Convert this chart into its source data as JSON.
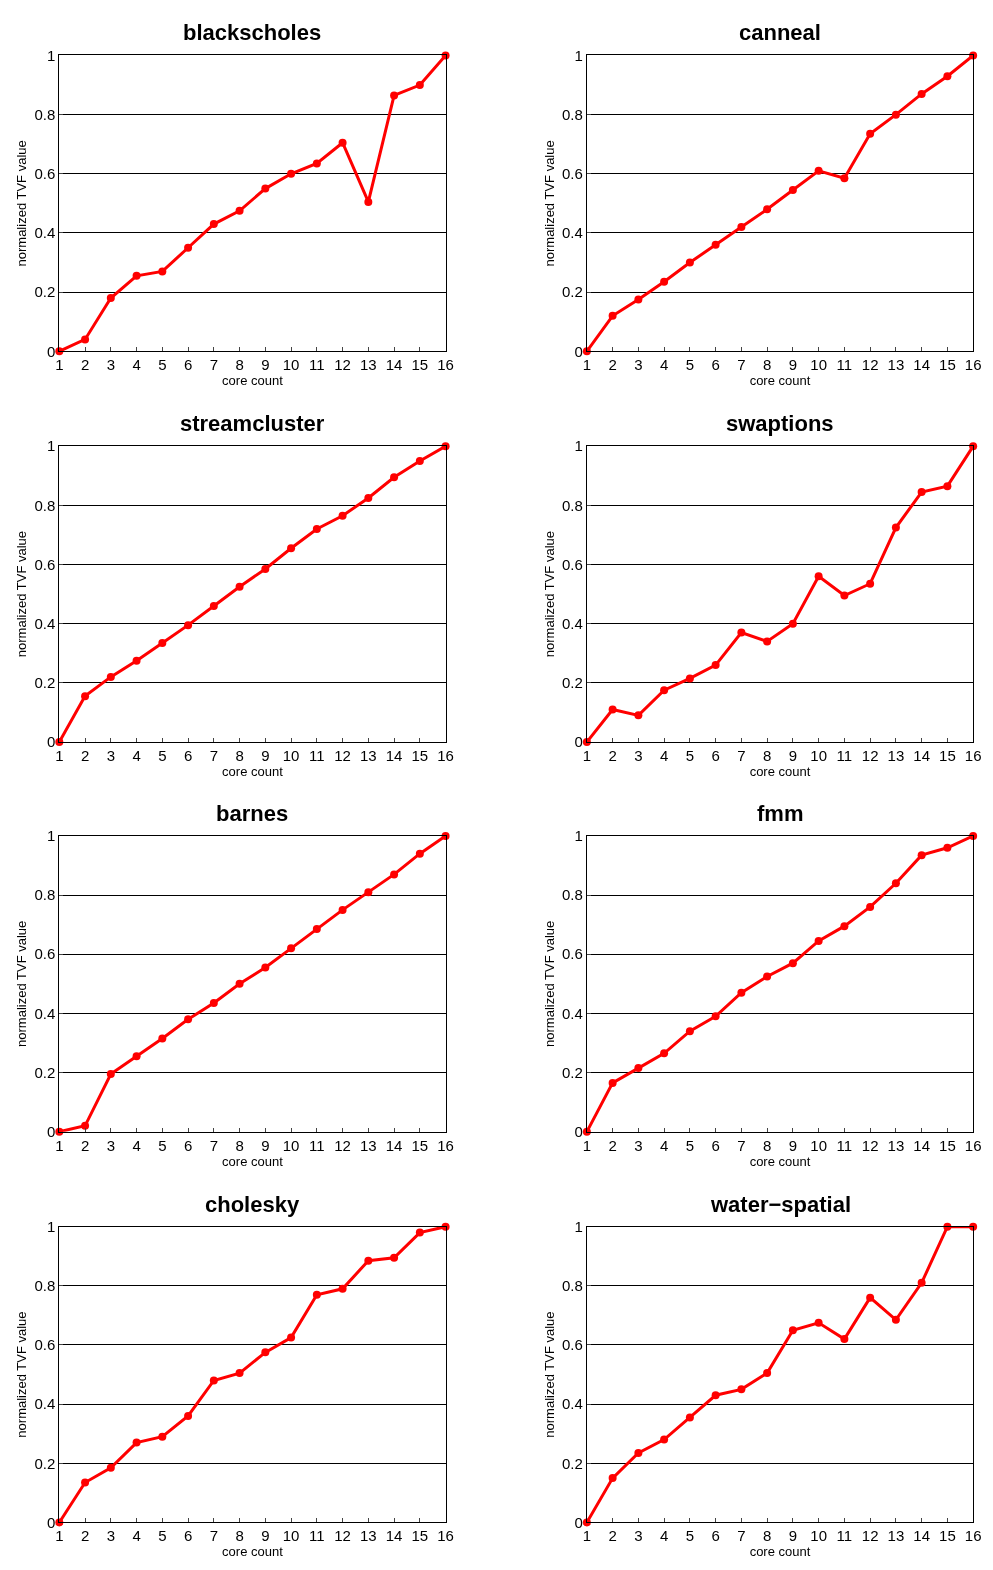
{
  "chart_data": [
    {
      "type": "line",
      "title": "blackscholes",
      "xlabel": "core count",
      "ylabel": "normalized TVF value",
      "x": [
        1,
        2,
        3,
        4,
        5,
        6,
        7,
        8,
        9,
        10,
        11,
        12,
        13,
        14,
        15,
        16
      ],
      "xlim": [
        1,
        16
      ],
      "ylim": [
        0,
        1
      ],
      "xticks": [
        1,
        2,
        3,
        4,
        5,
        6,
        7,
        8,
        9,
        10,
        11,
        12,
        13,
        14,
        15,
        16
      ],
      "yticks": [
        0,
        0.2,
        0.4,
        0.6,
        0.8,
        1
      ],
      "grid": "y",
      "marker": "circle",
      "line_style": "solid",
      "series": [
        {
          "color": "#ff0000",
          "values": [
            0,
            0.04,
            0.18,
            0.255,
            0.27,
            0.35,
            0.43,
            0.475,
            0.55,
            0.6,
            0.635,
            0.705,
            0.505,
            0.865,
            0.9,
            1
          ]
        }
      ]
    },
    {
      "type": "line",
      "title": "canneal",
      "xlabel": "core count",
      "ylabel": "normalized TVF value",
      "x": [
        1,
        2,
        3,
        4,
        5,
        6,
        7,
        8,
        9,
        10,
        11,
        12,
        13,
        14,
        15,
        16
      ],
      "xlim": [
        1,
        16
      ],
      "ylim": [
        0,
        1
      ],
      "xticks": [
        1,
        2,
        3,
        4,
        5,
        6,
        7,
        8,
        9,
        10,
        11,
        12,
        13,
        14,
        15,
        16
      ],
      "yticks": [
        0,
        0.2,
        0.4,
        0.6,
        0.8,
        1
      ],
      "grid": "y",
      "marker": "circle",
      "line_style": "solid",
      "series": [
        {
          "color": "#ff0000",
          "values": [
            0,
            0.12,
            0.175,
            0.235,
            0.3,
            0.36,
            0.42,
            0.48,
            0.545,
            0.61,
            0.585,
            0.735,
            0.8,
            0.87,
            0.93,
            1
          ]
        }
      ]
    },
    {
      "type": "line",
      "title": "streamcluster",
      "xlabel": "core count",
      "ylabel": "normalized TVF value",
      "x": [
        1,
        2,
        3,
        4,
        5,
        6,
        7,
        8,
        9,
        10,
        11,
        12,
        13,
        14,
        15,
        16
      ],
      "xlim": [
        1,
        16
      ],
      "ylim": [
        0,
        1
      ],
      "xticks": [
        1,
        2,
        3,
        4,
        5,
        6,
        7,
        8,
        9,
        10,
        11,
        12,
        13,
        14,
        15,
        16
      ],
      "yticks": [
        0,
        0.2,
        0.4,
        0.6,
        0.8,
        1
      ],
      "grid": "y",
      "marker": "circle",
      "line_style": "solid",
      "series": [
        {
          "color": "#ff0000",
          "values": [
            0,
            0.155,
            0.22,
            0.275,
            0.335,
            0.395,
            0.46,
            0.525,
            0.585,
            0.655,
            0.72,
            0.765,
            0.825,
            0.895,
            0.95,
            1
          ]
        }
      ]
    },
    {
      "type": "line",
      "title": "swaptions",
      "xlabel": "core count",
      "ylabel": "normalized TVF value",
      "x": [
        1,
        2,
        3,
        4,
        5,
        6,
        7,
        8,
        9,
        10,
        11,
        12,
        13,
        14,
        15,
        16
      ],
      "xlim": [
        1,
        16
      ],
      "ylim": [
        0,
        1
      ],
      "xticks": [
        1,
        2,
        3,
        4,
        5,
        6,
        7,
        8,
        9,
        10,
        11,
        12,
        13,
        14,
        15,
        16
      ],
      "yticks": [
        0,
        0.2,
        0.4,
        0.6,
        0.8,
        1
      ],
      "grid": "y",
      "marker": "circle",
      "line_style": "solid",
      "series": [
        {
          "color": "#ff0000",
          "values": [
            0,
            0.11,
            0.09,
            0.175,
            0.215,
            0.26,
            0.37,
            0.34,
            0.4,
            0.56,
            0.495,
            0.535,
            0.725,
            0.845,
            0.865,
            1
          ]
        }
      ]
    },
    {
      "type": "line",
      "title": "barnes",
      "xlabel": "core count",
      "ylabel": "normalized TVF value",
      "x": [
        1,
        2,
        3,
        4,
        5,
        6,
        7,
        8,
        9,
        10,
        11,
        12,
        13,
        14,
        15,
        16
      ],
      "xlim": [
        1,
        16
      ],
      "ylim": [
        0,
        1
      ],
      "xticks": [
        1,
        2,
        3,
        4,
        5,
        6,
        7,
        8,
        9,
        10,
        11,
        12,
        13,
        14,
        15,
        16
      ],
      "yticks": [
        0,
        0.2,
        0.4,
        0.6,
        0.8,
        1
      ],
      "grid": "y",
      "marker": "circle",
      "line_style": "solid",
      "series": [
        {
          "color": "#ff0000",
          "values": [
            0,
            0.02,
            0.195,
            0.255,
            0.315,
            0.38,
            0.435,
            0.5,
            0.555,
            0.62,
            0.685,
            0.75,
            0.81,
            0.87,
            0.94,
            1
          ]
        }
      ]
    },
    {
      "type": "line",
      "title": "fmm",
      "xlabel": "core count",
      "ylabel": "normalized TVF value",
      "x": [
        1,
        2,
        3,
        4,
        5,
        6,
        7,
        8,
        9,
        10,
        11,
        12,
        13,
        14,
        15,
        16
      ],
      "xlim": [
        1,
        16
      ],
      "ylim": [
        0,
        1
      ],
      "xticks": [
        1,
        2,
        3,
        4,
        5,
        6,
        7,
        8,
        9,
        10,
        11,
        12,
        13,
        14,
        15,
        16
      ],
      "yticks": [
        0,
        0.2,
        0.4,
        0.6,
        0.8,
        1
      ],
      "grid": "y",
      "marker": "circle",
      "line_style": "solid",
      "series": [
        {
          "color": "#ff0000",
          "values": [
            0,
            0.165,
            0.215,
            0.265,
            0.34,
            0.39,
            0.47,
            0.525,
            0.57,
            0.645,
            0.695,
            0.76,
            0.84,
            0.935,
            0.96,
            1
          ]
        }
      ]
    },
    {
      "type": "line",
      "title": "cholesky",
      "xlabel": "core count",
      "ylabel": "normalized TVF value",
      "x": [
        1,
        2,
        3,
        4,
        5,
        6,
        7,
        8,
        9,
        10,
        11,
        12,
        13,
        14,
        15,
        16
      ],
      "xlim": [
        1,
        16
      ],
      "ylim": [
        0,
        1
      ],
      "xticks": [
        1,
        2,
        3,
        4,
        5,
        6,
        7,
        8,
        9,
        10,
        11,
        12,
        13,
        14,
        15,
        16
      ],
      "yticks": [
        0,
        0.2,
        0.4,
        0.6,
        0.8,
        1
      ],
      "grid": "y",
      "marker": "circle",
      "line_style": "solid",
      "series": [
        {
          "color": "#ff0000",
          "values": [
            0,
            0.135,
            0.185,
            0.27,
            0.29,
            0.36,
            0.48,
            0.505,
            0.575,
            0.625,
            0.77,
            0.79,
            0.885,
            0.895,
            0.98,
            1
          ]
        }
      ]
    },
    {
      "type": "line",
      "title": "water−spatial",
      "xlabel": "core count",
      "ylabel": "normalized TVF value",
      "x": [
        1,
        2,
        3,
        4,
        5,
        6,
        7,
        8,
        9,
        10,
        11,
        12,
        13,
        14,
        15,
        16
      ],
      "xlim": [
        1,
        16
      ],
      "ylim": [
        0,
        1
      ],
      "xticks": [
        1,
        2,
        3,
        4,
        5,
        6,
        7,
        8,
        9,
        10,
        11,
        12,
        13,
        14,
        15,
        16
      ],
      "yticks": [
        0,
        0.2,
        0.4,
        0.6,
        0.8,
        1
      ],
      "grid": "y",
      "marker": "circle",
      "line_style": "solid",
      "series": [
        {
          "color": "#ff0000",
          "values": [
            0,
            0.15,
            0.235,
            0.28,
            0.355,
            0.43,
            0.45,
            0.505,
            0.65,
            0.675,
            0.62,
            0.76,
            0.685,
            0.81,
            1,
            1
          ]
        }
      ]
    }
  ]
}
